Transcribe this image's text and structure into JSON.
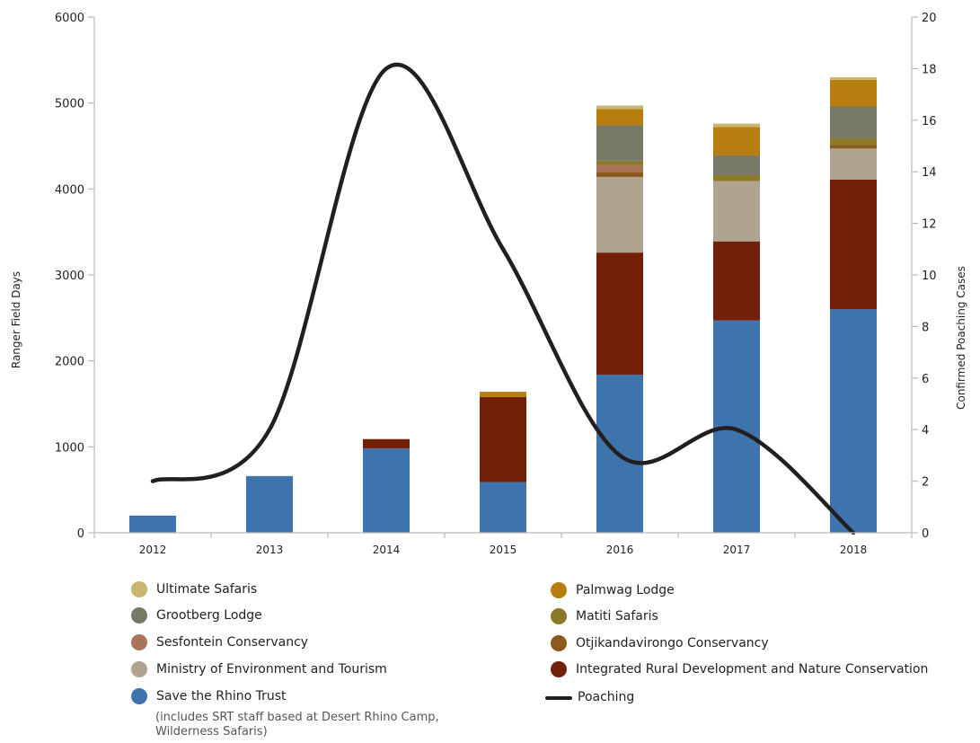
{
  "chart_data": {
    "type": "bar",
    "categories": [
      "2012",
      "2013",
      "2014",
      "2015",
      "2016",
      "2017",
      "2018"
    ],
    "ylabel": "Ranger Field Days",
    "y2label": "Confirmed Poaching Cases",
    "ylim": [
      0,
      6000
    ],
    "y2lim": [
      0,
      20
    ],
    "yticks": [
      "0",
      "1000",
      "2000",
      "3000",
      "4000",
      "5000",
      "6000"
    ],
    "y2ticks": [
      "0",
      "2",
      "4",
      "6",
      "8",
      "10",
      "12",
      "14",
      "16",
      "18",
      "20"
    ],
    "stacked": true,
    "series": [
      {
        "name": "Save the Rhino Trust",
        "color": "#3e74ab",
        "values": [
          200,
          660,
          980,
          590,
          1840,
          2470,
          2600
        ]
      },
      {
        "name": "Integrated Rural Development and Nature Conservation",
        "color": "#722108",
        "values": [
          0,
          0,
          110,
          990,
          1420,
          920,
          1510
        ]
      },
      {
        "name": "Ministry of Environment and Tourism",
        "color": "#b0a38f",
        "values": [
          0,
          0,
          0,
          0,
          880,
          700,
          360
        ]
      },
      {
        "name": "Otjikandavirongo Conservancy",
        "color": "#8b5a1c",
        "values": [
          0,
          0,
          0,
          0,
          60,
          0,
          40
        ]
      },
      {
        "name": "Sesfontein Conservancy",
        "color": "#a87558",
        "values": [
          0,
          0,
          0,
          0,
          80,
          0,
          0
        ]
      },
      {
        "name": "Matiti Safaris",
        "color": "#8a7a28",
        "values": [
          0,
          0,
          0,
          0,
          50,
          70,
          80
        ]
      },
      {
        "name": "Grootberg Lodge",
        "color": "#777866",
        "values": [
          0,
          0,
          0,
          0,
          410,
          230,
          370
        ]
      },
      {
        "name": "Palmwag Lodge",
        "color": "#b57e0e",
        "values": [
          0,
          0,
          0,
          60,
          190,
          330,
          310
        ]
      },
      {
        "name": "Ultimate Safaris",
        "color": "#c8b56f",
        "values": [
          0,
          0,
          0,
          0,
          40,
          40,
          30
        ]
      }
    ],
    "line_series": {
      "name": "Poaching",
      "axis": "right",
      "color": "#231f20",
      "values": [
        2,
        4,
        18,
        11,
        3,
        4,
        0
      ]
    }
  },
  "legend": {
    "items": [
      {
        "label": "Ultimate Safaris",
        "color": "#c8b56f"
      },
      {
        "label": "Palmwag Lodge",
        "color": "#b57e0e"
      },
      {
        "label": "Grootberg Lodge",
        "color": "#777866"
      },
      {
        "label": "Matiti Safaris",
        "color": "#8a7a28"
      },
      {
        "label": "Sesfontein Conservancy",
        "color": "#a87558"
      },
      {
        "label": "Otjikandavirongo Conservancy",
        "color": "#8b5a1c"
      },
      {
        "label": "Ministry of Environment and Tourism",
        "color": "#b0a38f"
      },
      {
        "label": "Integrated Rural Development and Nature Conservation",
        "color": "#722108"
      },
      {
        "label": "Save the Rhino Trust",
        "color": "#3e74ab"
      },
      {
        "label": "Poaching",
        "color": "#231f20"
      }
    ],
    "srt_note": "(includes SRT staff based at Desert Rhino Camp, Wilderness Safaris)"
  }
}
